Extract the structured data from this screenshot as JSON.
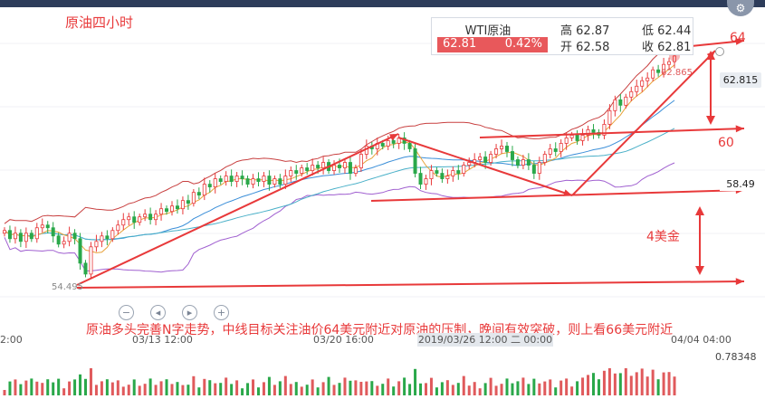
{
  "title": "原油四小时",
  "quote": {
    "name": "WTI原油",
    "price": "62.81",
    "change_pct": "0.42%",
    "high_label": "高",
    "high": "62.87",
    "low_label": "低",
    "low": "62.44",
    "open_label": "开",
    "open": "62.58",
    "close_label": "收",
    "close": "62.81"
  },
  "badges": {
    "last_price": "62.815",
    "ref_price": "58.49",
    "peak": "62.865",
    "low": "54.495"
  },
  "annotations": {
    "level_64": "64",
    "level_60": "60",
    "move": "4美金"
  },
  "caption": "原油多头完善N字走势，中线目标关注油价64美元附近对原油的压制，晚间有效突破，则上看66美元附近",
  "x_ticks": [
    "03/13 12:00",
    "03/20 16:00",
    "04/04 04:00"
  ],
  "x_tick_left_partial": "2:00",
  "x_highlight": "2019/03/26 12:00 二 00:00",
  "volume_label": "0.78348",
  "controls": [
    "minus-icon",
    "prev-icon",
    "next-icon",
    "plus-icon"
  ],
  "colors": {
    "up": "#e8393a",
    "down": "#2aa84a",
    "ma1": "#e8a23a",
    "ma2": "#3a8ed8",
    "bb": "#c84040",
    "bb_lower": "#a060d0",
    "arrow": "#e8393a"
  },
  "chart_data": {
    "type": "candlestick",
    "ylim": [
      53.7,
      64.6
    ],
    "close": [
      56.4,
      56.1,
      56.3,
      56.0,
      56.3,
      56.1,
      56.5,
      56.6,
      56.5,
      56.2,
      55.9,
      56.0,
      56.3,
      56.1,
      55.2,
      54.8,
      55.8,
      56.0,
      56.2,
      56.1,
      56.4,
      56.6,
      56.8,
      56.9,
      56.7,
      56.9,
      57.0,
      56.8,
      57.0,
      57.2,
      57.1,
      57.3,
      57.2,
      57.5,
      57.4,
      57.8,
      57.7,
      58.1,
      58.0,
      58.3,
      58.2,
      58.4,
      58.2,
      58.4,
      58.3,
      58.1,
      58.3,
      58.2,
      58.4,
      58.1,
      58.3,
      58.1,
      58.4,
      58.6,
      58.5,
      58.7,
      58.6,
      58.8,
      58.7,
      58.9,
      58.6,
      58.8,
      58.7,
      58.9,
      58.5,
      58.7,
      59.2,
      59.5,
      59.4,
      59.6,
      59.5,
      59.7,
      59.6,
      59.8,
      59.6,
      59.4,
      58.5,
      58.1,
      58.3,
      58.6,
      58.5,
      58.3,
      58.4,
      58.6,
      58.5,
      58.8,
      58.9,
      59.0,
      59.1,
      58.9,
      59.2,
      59.4,
      59.5,
      59.3,
      59.0,
      58.8,
      59.0,
      58.8,
      58.5,
      58.9,
      59.2,
      59.4,
      59.3,
      59.6,
      59.8,
      59.9,
      59.7,
      59.9,
      60.1,
      60.0,
      59.9,
      60.3,
      60.8,
      61.2,
      61.0,
      61.3,
      61.5,
      61.7,
      61.9,
      62.0,
      62.3,
      62.2,
      62.5,
      62.6,
      62.81
    ]
  }
}
